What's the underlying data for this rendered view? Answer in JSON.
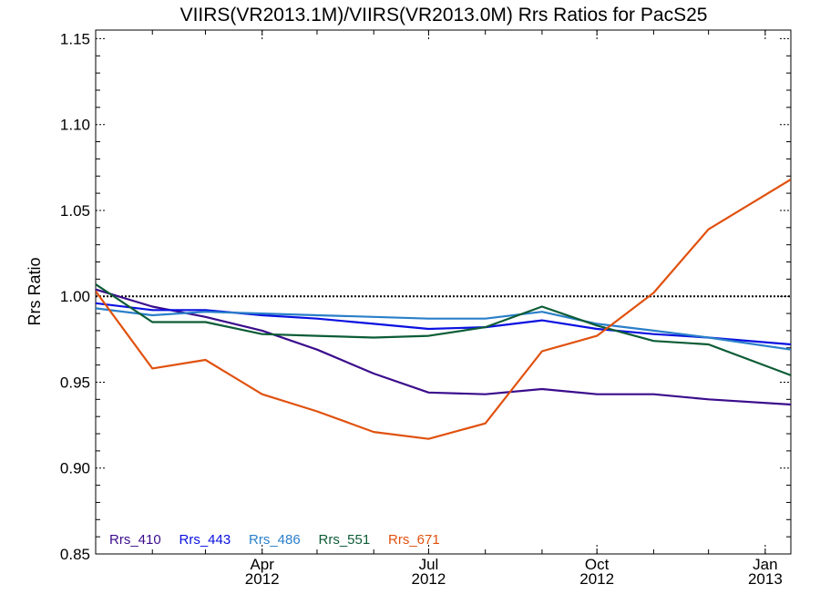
{
  "chart_data": {
    "type": "line",
    "title": "VIIRS(VR2013.1M)/VIIRS(VR2013.0M)  Rrs Ratios for PacS25",
    "xlabel": "",
    "ylabel": "Rrs Ratio",
    "xlim": [
      "2012-01-01",
      "2013-01-15"
    ],
    "ylim": [
      0.85,
      1.155
    ],
    "yticks": [
      {
        "value": 0.85,
        "label": "0.85"
      },
      {
        "value": 0.9,
        "label": "0.90"
      },
      {
        "value": 0.95,
        "label": "0.95"
      },
      {
        "value": 1.0,
        "label": "1.00"
      },
      {
        "value": 1.05,
        "label": "1.05"
      },
      {
        "value": 1.1,
        "label": "1.10"
      },
      {
        "value": 1.15,
        "label": "1.15"
      }
    ],
    "xticks": [
      {
        "date": "2012-04-01",
        "month": "Apr",
        "year": "2012"
      },
      {
        "date": "2012-07-01",
        "month": "Jul",
        "year": "2012"
      },
      {
        "date": "2012-10-01",
        "month": "Oct",
        "year": "2012"
      },
      {
        "date": "2013-01-01",
        "month": "Jan",
        "year": "2013"
      }
    ],
    "reference_line": 1.0,
    "legend_placement": "bottom-left",
    "series": [
      {
        "name": "Rrs_410",
        "color": "#3b0c8c",
        "points": [
          {
            "x": "2012-01-01",
            "y": 1.004
          },
          {
            "x": "2012-02-01",
            "y": 0.994
          },
          {
            "x": "2012-03-01",
            "y": 0.988
          },
          {
            "x": "2012-04-01",
            "y": 0.98
          },
          {
            "x": "2012-05-01",
            "y": 0.969
          },
          {
            "x": "2012-06-01",
            "y": 0.955
          },
          {
            "x": "2012-07-01",
            "y": 0.944
          },
          {
            "x": "2012-08-01",
            "y": 0.943
          },
          {
            "x": "2012-09-01",
            "y": 0.946
          },
          {
            "x": "2012-10-01",
            "y": 0.943
          },
          {
            "x": "2012-11-01",
            "y": 0.943
          },
          {
            "x": "2012-12-01",
            "y": 0.94
          },
          {
            "x": "2013-01-15",
            "y": 0.937
          }
        ]
      },
      {
        "name": "Rrs_443",
        "color": "#0a10e0",
        "points": [
          {
            "x": "2012-01-01",
            "y": 0.996
          },
          {
            "x": "2012-02-01",
            "y": 0.992
          },
          {
            "x": "2012-03-01",
            "y": 0.992
          },
          {
            "x": "2012-04-01",
            "y": 0.989
          },
          {
            "x": "2012-05-01",
            "y": 0.987
          },
          {
            "x": "2012-06-01",
            "y": 0.984
          },
          {
            "x": "2012-07-01",
            "y": 0.981
          },
          {
            "x": "2012-08-01",
            "y": 0.982
          },
          {
            "x": "2012-09-01",
            "y": 0.986
          },
          {
            "x": "2012-10-01",
            "y": 0.981
          },
          {
            "x": "2012-11-01",
            "y": 0.978
          },
          {
            "x": "2012-12-01",
            "y": 0.976
          },
          {
            "x": "2013-01-15",
            "y": 0.972
          }
        ]
      },
      {
        "name": "Rrs_486",
        "color": "#2a7fc9",
        "points": [
          {
            "x": "2012-01-01",
            "y": 0.993
          },
          {
            "x": "2012-02-01",
            "y": 0.989
          },
          {
            "x": "2012-03-01",
            "y": 0.991
          },
          {
            "x": "2012-04-01",
            "y": 0.99
          },
          {
            "x": "2012-05-01",
            "y": 0.989
          },
          {
            "x": "2012-06-01",
            "y": 0.988
          },
          {
            "x": "2012-07-01",
            "y": 0.987
          },
          {
            "x": "2012-08-01",
            "y": 0.987
          },
          {
            "x": "2012-09-01",
            "y": 0.991
          },
          {
            "x": "2012-10-01",
            "y": 0.984
          },
          {
            "x": "2012-11-01",
            "y": 0.98
          },
          {
            "x": "2012-12-01",
            "y": 0.976
          },
          {
            "x": "2013-01-15",
            "y": 0.969
          }
        ]
      },
      {
        "name": "Rrs_551",
        "color": "#0c5c36",
        "points": [
          {
            "x": "2012-01-01",
            "y": 1.007
          },
          {
            "x": "2012-02-01",
            "y": 0.985
          },
          {
            "x": "2012-03-01",
            "y": 0.985
          },
          {
            "x": "2012-04-01",
            "y": 0.978
          },
          {
            "x": "2012-05-01",
            "y": 0.977
          },
          {
            "x": "2012-06-01",
            "y": 0.976
          },
          {
            "x": "2012-07-01",
            "y": 0.977
          },
          {
            "x": "2012-08-01",
            "y": 0.982
          },
          {
            "x": "2012-09-01",
            "y": 0.994
          },
          {
            "x": "2012-10-01",
            "y": 0.983
          },
          {
            "x": "2012-11-01",
            "y": 0.974
          },
          {
            "x": "2012-12-01",
            "y": 0.972
          },
          {
            "x": "2013-01-15",
            "y": 0.954
          }
        ]
      },
      {
        "name": "Rrs_671",
        "color": "#e0510e",
        "points": [
          {
            "x": "2012-01-01",
            "y": 1.003
          },
          {
            "x": "2012-02-01",
            "y": 0.958
          },
          {
            "x": "2012-03-01",
            "y": 0.963
          },
          {
            "x": "2012-04-01",
            "y": 0.943
          },
          {
            "x": "2012-05-01",
            "y": 0.933
          },
          {
            "x": "2012-06-01",
            "y": 0.921
          },
          {
            "x": "2012-07-01",
            "y": 0.917
          },
          {
            "x": "2012-08-01",
            "y": 0.926
          },
          {
            "x": "2012-09-01",
            "y": 0.968
          },
          {
            "x": "2012-10-01",
            "y": 0.977
          },
          {
            "x": "2012-11-01",
            "y": 1.002
          },
          {
            "x": "2012-12-01",
            "y": 1.039
          },
          {
            "x": "2013-01-15",
            "y": 1.068
          }
        ]
      }
    ]
  }
}
